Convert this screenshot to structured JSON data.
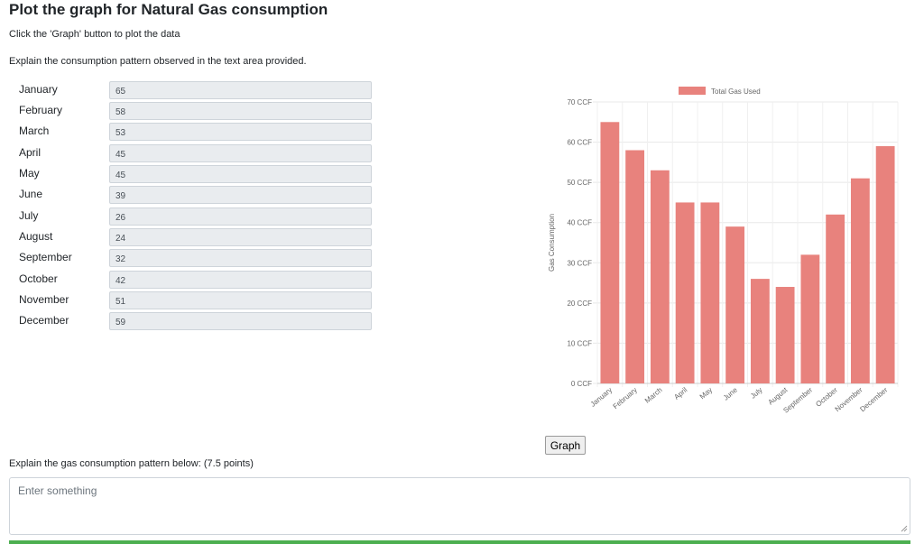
{
  "page": {
    "title": "Plot the graph for Natural Gas consumption",
    "instruction1": "Click the 'Graph' button to plot the data",
    "instruction2": "Explain the consumption pattern observed in the text area provided."
  },
  "months": [
    {
      "label": "January",
      "value": "65"
    },
    {
      "label": "February",
      "value": "58"
    },
    {
      "label": "March",
      "value": "53"
    },
    {
      "label": "April",
      "value": "45"
    },
    {
      "label": "May",
      "value": "45"
    },
    {
      "label": "June",
      "value": "39"
    },
    {
      "label": "July",
      "value": "26"
    },
    {
      "label": "August",
      "value": "24"
    },
    {
      "label": "September",
      "value": "32"
    },
    {
      "label": "October",
      "value": "42"
    },
    {
      "label": "November",
      "value": "51"
    },
    {
      "label": "December",
      "value": "59"
    }
  ],
  "graph_button": {
    "label": "Graph"
  },
  "explain": {
    "label": "Explain the gas consumption pattern below: (7.5 points)",
    "placeholder": "Enter something",
    "value": ""
  },
  "colors": {
    "bar": "#e8827d",
    "progress": "#4caf50"
  },
  "chart_data": {
    "type": "bar",
    "categories": [
      "January",
      "February",
      "March",
      "April",
      "May",
      "June",
      "July",
      "August",
      "September",
      "October",
      "November",
      "December"
    ],
    "series": [
      {
        "name": "Total Gas Used",
        "values": [
          65,
          58,
          53,
          45,
          45,
          39,
          26,
          24,
          32,
          42,
          51,
          59
        ]
      }
    ],
    "title": "",
    "xlabel": "",
    "ylabel": "Gas Consumption",
    "ylim": [
      0,
      70
    ],
    "yticks": [
      "0 CCF",
      "10 CCF",
      "20 CCF",
      "30 CCF",
      "40 CCF",
      "50 CCF",
      "60 CCF",
      "70 CCF"
    ],
    "legend": "top-center",
    "grid": true
  }
}
